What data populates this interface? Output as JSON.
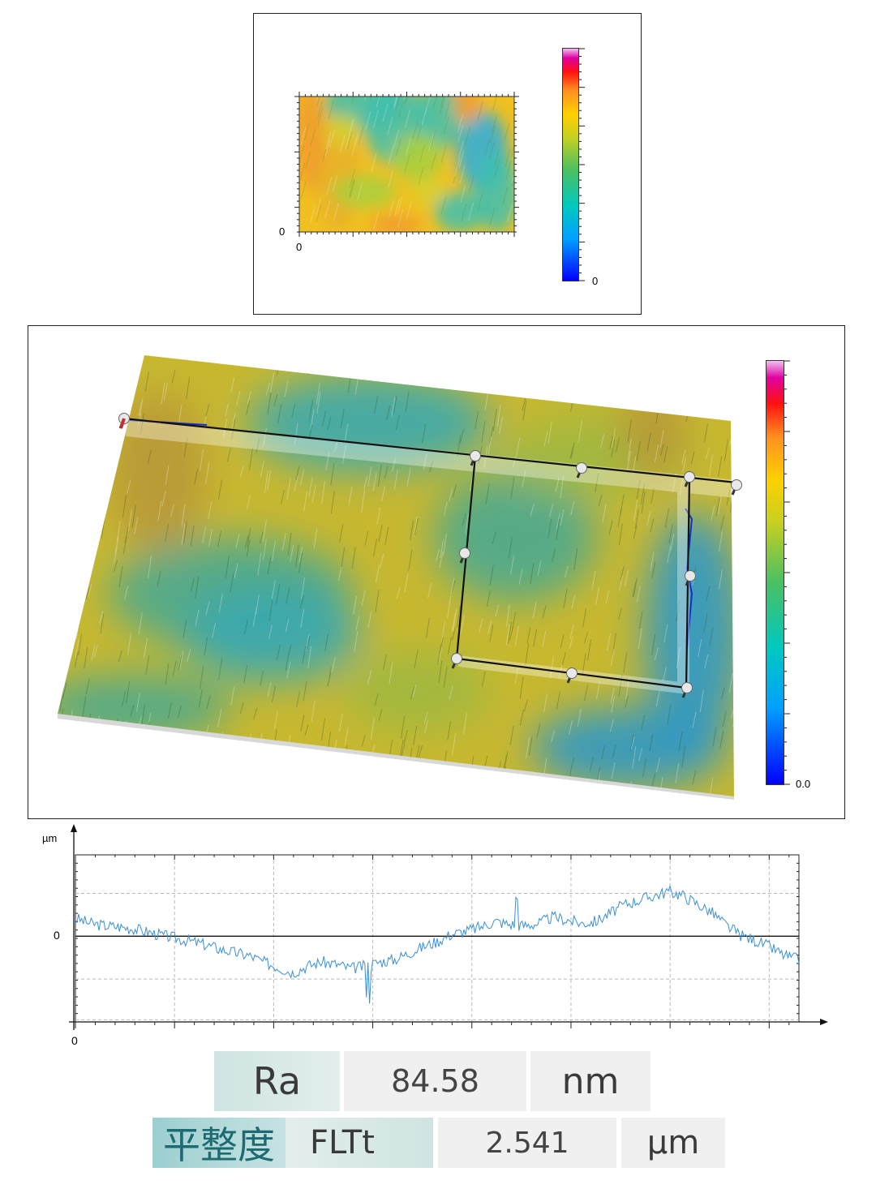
{
  "top_panel": {
    "map_y_tick_label": "0",
    "map_x_tick_label": "0",
    "colorbar_min_label": "0",
    "map_colors": [
      "#f0c020",
      "#e8b028",
      "#a8d040",
      "#3ec0b0",
      "#2aaee0",
      "#f09a30",
      "#d8d030"
    ]
  },
  "mid_panel": {
    "colorbar_min_label": "0.0",
    "surface_colors": [
      "#c8b830",
      "#3aa8b0",
      "#2e98c8",
      "#a0b840",
      "#4aa890",
      "#b89838"
    ]
  },
  "chart_data": {
    "type": "line",
    "ylabel": "µm",
    "x_origin_label": "0",
    "y_origin_label": "0",
    "grid": true,
    "series": [
      {
        "color": "#3a8fd6",
        "x": [
          0,
          0.02,
          0.04,
          0.06,
          0.08,
          0.1,
          0.12,
          0.14,
          0.16,
          0.18,
          0.2,
          0.22,
          0.24,
          0.26,
          0.28,
          0.3,
          0.32,
          0.34,
          0.36,
          0.38,
          0.4,
          0.42,
          0.44,
          0.46,
          0.48,
          0.5,
          0.52,
          0.54,
          0.56,
          0.58,
          0.6,
          0.62,
          0.64,
          0.66,
          0.68,
          0.7,
          0.72,
          0.74,
          0.76,
          0.78,
          0.8,
          0.82,
          0.84,
          0.86,
          0.88,
          0.9,
          0.92,
          0.94,
          0.96,
          0.98,
          1.0
        ],
        "y": [
          0.42,
          0.3,
          0.25,
          0.22,
          0.18,
          0.1,
          0.02,
          -0.05,
          -0.12,
          -0.2,
          -0.3,
          -0.38,
          -0.45,
          -0.6,
          -0.72,
          -0.85,
          -0.7,
          -0.6,
          -0.65,
          -0.75,
          -0.7,
          -0.6,
          -0.55,
          -0.4,
          -0.25,
          -0.12,
          0.05,
          0.12,
          0.22,
          0.35,
          0.28,
          0.25,
          0.3,
          0.45,
          0.38,
          0.3,
          0.35,
          0.55,
          0.75,
          0.85,
          0.95,
          1.05,
          0.95,
          0.75,
          0.55,
          0.25,
          0.02,
          -0.1,
          -0.25,
          -0.45,
          -0.55
        ]
      }
    ],
    "ylim": [
      -2.0,
      1.9
    ],
    "xlim": [
      0,
      1
    ]
  },
  "metrics": [
    {
      "label": "Ra",
      "value": "84.58",
      "unit": "nm"
    },
    {
      "label_cn": "平整度",
      "label": "FLTt",
      "value": "2.541",
      "unit": "µm"
    }
  ]
}
